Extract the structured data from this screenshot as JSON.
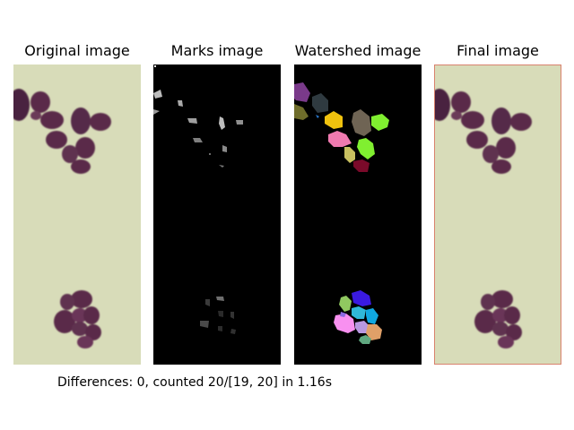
{
  "panels": {
    "original": {
      "title": "Original image"
    },
    "marks": {
      "title": "Marks image"
    },
    "watershed": {
      "title": "Watershed image"
    },
    "final": {
      "title": "Final image"
    }
  },
  "footer": {
    "text": "Differences: 0, counted 20/[19, 20] in 1.16s"
  },
  "colors": {
    "background_beige": "#d8dcb8",
    "cell_purple": "#5a2c4a",
    "final_border": "#d9826e",
    "marks_background": "#000000",
    "watershed_background": "#000000"
  }
}
